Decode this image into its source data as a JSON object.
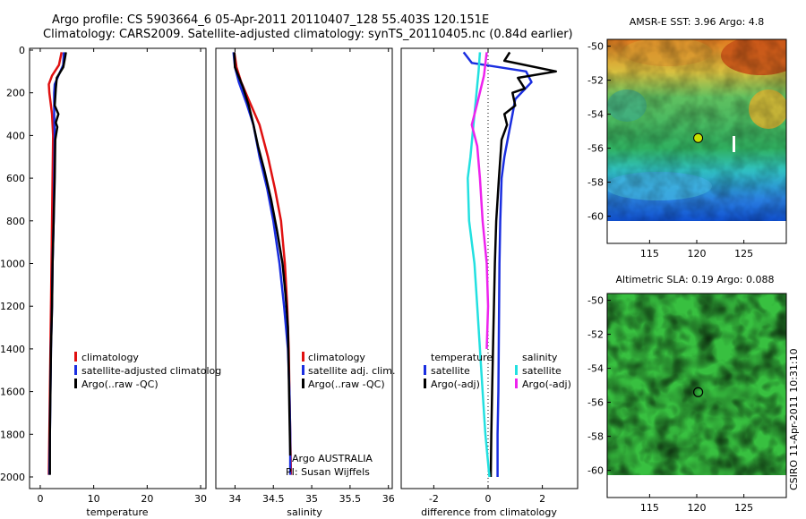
{
  "figure": {
    "title_line1": "Argo profile: CS 5903664_6 05-Apr-2011 20110407_128 55.403S 120.151E",
    "title_line2": "Climatology: CARS2009. Satellite-adjusted climatology: synTS_20110405.nc (0.84d earlier)",
    "credit": "CSIRO 11-Apr-2011 10:31:10"
  },
  "colors": {
    "climatology": "#e01010",
    "satellite": "#1a2ee0",
    "argo": "#000000",
    "satellite_diff_salinity": "#22e0e0",
    "argo_diff_salinity": "#ee22ee",
    "map_marker": "#c8e000"
  },
  "chart_data": [
    {
      "type": "line",
      "name": "temperature-panel",
      "xlabel": "temperature",
      "ylabel": "",
      "xlim": [
        -2,
        31
      ],
      "ylim": [
        2000,
        0
      ],
      "x_ticks": [
        "0",
        "10",
        "20",
        "30"
      ],
      "x_tick_values": [
        0,
        10,
        20,
        30
      ],
      "y_ticks": [
        "0",
        "200",
        "400",
        "600",
        "800",
        "1000",
        "1200",
        "1400",
        "1600",
        "1800",
        "2000"
      ],
      "y_tick_values": [
        0,
        200,
        400,
        600,
        800,
        1000,
        1200,
        1400,
        1600,
        1800,
        2000
      ],
      "legend": [
        "climatology",
        "satellite-adjusted climatolog",
        "Argo(..raw -QC)"
      ],
      "series": [
        {
          "name": "climatology",
          "color_key": "climatology",
          "points": [
            [
              4.0,
              10
            ],
            [
              3.5,
              70
            ],
            [
              2.2,
              120
            ],
            [
              1.6,
              160
            ],
            [
              1.7,
              200
            ],
            [
              2.2,
              300
            ],
            [
              2.4,
              400
            ],
            [
              2.3,
              600
            ],
            [
              2.2,
              800
            ],
            [
              2.1,
              1000
            ],
            [
              2.0,
              1200
            ],
            [
              1.9,
              1400
            ],
            [
              1.8,
              1600
            ],
            [
              1.7,
              1800
            ],
            [
              1.6,
              1990
            ]
          ]
        },
        {
          "name": "satellite-adjusted climatology",
          "color_key": "satellite",
          "points": [
            [
              4.4,
              10
            ],
            [
              4.3,
              70
            ],
            [
              3.4,
              120
            ],
            [
              2.7,
              160
            ],
            [
              2.6,
              200
            ],
            [
              2.6,
              300
            ],
            [
              2.7,
              400
            ],
            [
              2.6,
              600
            ],
            [
              2.5,
              800
            ],
            [
              2.3,
              1000
            ],
            [
              2.2,
              1200
            ],
            [
              2.0,
              1400
            ],
            [
              1.9,
              1600
            ],
            [
              1.8,
              1800
            ],
            [
              1.7,
              1990
            ]
          ]
        },
        {
          "name": "Argo(..raw -QC)",
          "color_key": "argo",
          "points": [
            [
              4.8,
              10
            ],
            [
              4.6,
              40
            ],
            [
              4.3,
              80
            ],
            [
              3.1,
              130
            ],
            [
              2.9,
              180
            ],
            [
              2.7,
              260
            ],
            [
              3.4,
              300
            ],
            [
              2.9,
              340
            ],
            [
              3.2,
              360
            ],
            [
              2.8,
              420
            ],
            [
              2.7,
              600
            ],
            [
              2.5,
              800
            ],
            [
              2.3,
              1000
            ],
            [
              2.2,
              1200
            ],
            [
              2.0,
              1400
            ],
            [
              1.9,
              1600
            ],
            [
              1.8,
              1800
            ],
            [
              1.8,
              1990
            ]
          ]
        }
      ]
    },
    {
      "type": "line",
      "name": "salinity-panel",
      "xlabel": "salinity",
      "xlim": [
        33.75,
        36.05
      ],
      "ylim": [
        2000,
        0
      ],
      "x_ticks": [
        "34",
        "34.5",
        "35",
        "35.5",
        "36"
      ],
      "x_tick_values": [
        34,
        34.5,
        35,
        35.5,
        36
      ],
      "legend": [
        "climatology",
        "satellite adj. clim.",
        "Argo(..raw -QC)"
      ],
      "annotation": [
        "Argo AUSTRALIA",
        "PI: Susan Wijffels"
      ],
      "series": [
        {
          "name": "climatology",
          "color_key": "climatology",
          "points": [
            [
              33.99,
              10
            ],
            [
              34.02,
              80
            ],
            [
              34.08,
              150
            ],
            [
              34.2,
              250
            ],
            [
              34.32,
              350
            ],
            [
              34.43,
              500
            ],
            [
              34.52,
              650
            ],
            [
              34.6,
              800
            ],
            [
              34.65,
              1000
            ],
            [
              34.68,
              1200
            ],
            [
              34.7,
              1400
            ],
            [
              34.71,
              1600
            ],
            [
              34.72,
              1800
            ],
            [
              34.73,
              1990
            ]
          ]
        },
        {
          "name": "satellite adj. clim.",
          "color_key": "satellite",
          "points": [
            [
              33.98,
              10
            ],
            [
              34.0,
              80
            ],
            [
              34.05,
              150
            ],
            [
              34.15,
              250
            ],
            [
              34.24,
              350
            ],
            [
              34.32,
              500
            ],
            [
              34.42,
              650
            ],
            [
              34.5,
              800
            ],
            [
              34.58,
              1000
            ],
            [
              34.64,
              1200
            ],
            [
              34.69,
              1400
            ],
            [
              34.71,
              1600
            ],
            [
              34.72,
              1800
            ],
            [
              34.72,
              1990
            ]
          ]
        },
        {
          "name": "Argo(..raw -QC)",
          "color_key": "argo",
          "points": [
            [
              33.99,
              10
            ],
            [
              34.0,
              80
            ],
            [
              34.1,
              170
            ],
            [
              34.18,
              260
            ],
            [
              34.24,
              350
            ],
            [
              34.3,
              450
            ],
            [
              34.38,
              560
            ],
            [
              34.47,
              700
            ],
            [
              34.55,
              850
            ],
            [
              34.62,
              1000
            ],
            [
              34.66,
              1150
            ],
            [
              34.69,
              1300
            ],
            [
              34.7,
              1500
            ],
            [
              34.71,
              1700
            ],
            [
              34.72,
              1900
            ]
          ]
        }
      ]
    },
    {
      "type": "line",
      "name": "difference-panel",
      "xlabel": "difference from climatology",
      "xlim": [
        -3.2,
        3.3
      ],
      "ylim": [
        2000,
        0
      ],
      "x_ticks": [
        "-2",
        "0",
        "2"
      ],
      "x_tick_values": [
        -2,
        0,
        2
      ],
      "legend_temperature": {
        "heading": "temperature",
        "entries": [
          "satellite",
          "Argo(-adj)"
        ]
      },
      "legend_salinity": {
        "heading": "salinity",
        "entries": [
          "satellite",
          "Argo(-adj)"
        ]
      },
      "series": [
        {
          "name": "temperature satellite",
          "color_key": "satellite",
          "points": [
            [
              -0.9,
              10
            ],
            [
              -0.6,
              60
            ],
            [
              1.4,
              100
            ],
            [
              1.6,
              150
            ],
            [
              1.0,
              230
            ],
            [
              0.9,
              300
            ],
            [
              0.75,
              400
            ],
            [
              0.6,
              500
            ],
            [
              0.5,
              600
            ],
            [
              0.45,
              800
            ],
            [
              0.42,
              1000
            ],
            [
              0.4,
              1300
            ],
            [
              0.38,
              1600
            ],
            [
              0.35,
              1800
            ],
            [
              0.35,
              2000
            ]
          ]
        },
        {
          "name": "temperature Argo(-adj)",
          "color_key": "argo",
          "points": [
            [
              0.8,
              10
            ],
            [
              0.6,
              50
            ],
            [
              2.5,
              100
            ],
            [
              1.1,
              130
            ],
            [
              1.35,
              180
            ],
            [
              0.9,
              200
            ],
            [
              1.0,
              260
            ],
            [
              0.6,
              300
            ],
            [
              0.7,
              350
            ],
            [
              0.5,
              420
            ],
            [
              0.4,
              600
            ],
            [
              0.3,
              800
            ],
            [
              0.25,
              1000
            ],
            [
              0.2,
              1300
            ],
            [
              0.15,
              1600
            ],
            [
              0.12,
              1800
            ],
            [
              0.1,
              2000
            ]
          ]
        },
        {
          "name": "salinity satellite",
          "color_key": "satellite_diff_salinity",
          "points": [
            [
              -0.3,
              10
            ],
            [
              -0.35,
              100
            ],
            [
              -0.5,
              300
            ],
            [
              -0.65,
              500
            ],
            [
              -0.75,
              600
            ],
            [
              -0.7,
              800
            ],
            [
              -0.5,
              1000
            ],
            [
              -0.4,
              1200
            ],
            [
              -0.3,
              1400
            ],
            [
              -0.2,
              1600
            ],
            [
              -0.1,
              1800
            ],
            [
              0.05,
              2000
            ]
          ]
        },
        {
          "name": "salinity Argo(-adj)",
          "color_key": "argo_diff_salinity",
          "points": [
            [
              -0.05,
              10
            ],
            [
              -0.15,
              120
            ],
            [
              -0.4,
              250
            ],
            [
              -0.6,
              350
            ],
            [
              -0.4,
              450
            ],
            [
              -0.3,
              600
            ],
            [
              -0.2,
              800
            ],
            [
              -0.05,
              1000
            ],
            [
              0.0,
              1200
            ],
            [
              -0.05,
              1400
            ]
          ]
        }
      ]
    },
    {
      "type": "heatmap",
      "name": "sst-map",
      "title": "AMSR-E SST: 3.96 Argo: 4.8",
      "x_ticks": [
        "115",
        "120",
        "125"
      ],
      "x_tick_values": [
        115,
        120,
        125
      ],
      "y_ticks": [
        "-50",
        "-52",
        "-54",
        "-56",
        "-58",
        "-60"
      ],
      "y_tick_values": [
        -50,
        -52,
        -54,
        -56,
        -58,
        -60
      ],
      "xlim": [
        110.5,
        129.5
      ],
      "ylim": [
        -61.6,
        -49.6
      ],
      "data_ylim": [
        -60.2,
        -49.6
      ],
      "marker": {
        "lon": 120.151,
        "lat": -55.403
      }
    },
    {
      "type": "heatmap",
      "name": "sla-map",
      "title": "Altimetric SLA: 0.19 Argo: 0.088",
      "x_ticks": [
        "115",
        "120",
        "125"
      ],
      "x_tick_values": [
        115,
        120,
        125
      ],
      "y_ticks": [
        "-50",
        "-52",
        "-54",
        "-56",
        "-58",
        "-60"
      ],
      "y_tick_values": [
        -50,
        -52,
        -54,
        -56,
        -58,
        -60
      ],
      "xlim": [
        110.5,
        129.5
      ],
      "ylim": [
        -61.6,
        -49.6
      ],
      "data_ylim": [
        -60.2,
        -49.6
      ],
      "marker": {
        "lon": 120.151,
        "lat": -55.403
      }
    }
  ]
}
